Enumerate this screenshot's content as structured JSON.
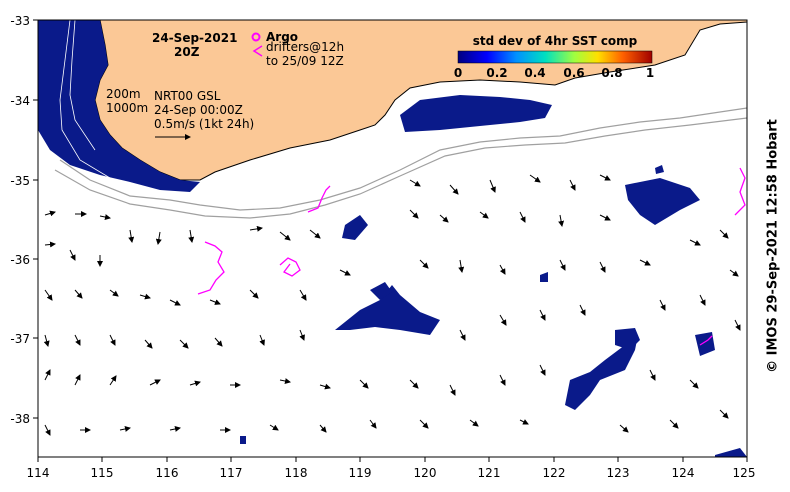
{
  "date_label": "24-Sep-2021",
  "time_label": "20Z",
  "legend": {
    "argo_label": "Argo",
    "drifters_label": "drifters@12h",
    "drifters_sub": "to 25/09 12Z"
  },
  "isobaths": {
    "a": "200m",
    "b": "1000m"
  },
  "current_info": {
    "line1": "NRT00 GSL",
    "line2": "24-Sep 00:00Z",
    "line3": "0.5m/s (1kt 24h)"
  },
  "colorbar": {
    "title": "std dev of 4hr SST comp",
    "ticks": [
      "0",
      "0.2",
      "0.4",
      "0.6",
      "0.8",
      "1"
    ]
  },
  "axes": {
    "x_ticks": [
      "114",
      "115",
      "116",
      "117",
      "118",
      "119",
      "120",
      "121",
      "122",
      "123",
      "124",
      "125"
    ],
    "y_ticks": [
      "-33",
      "-34",
      "-35",
      "-36",
      "-37",
      "-38"
    ]
  },
  "credit": "© IMOS 29-Sep-2021 12:58 Hobart",
  "colors": {
    "land": "#fbc896",
    "stddev_low": "#0a1a8a",
    "drifter": "#ff00ff",
    "isobath": "#a0a0a0"
  }
}
